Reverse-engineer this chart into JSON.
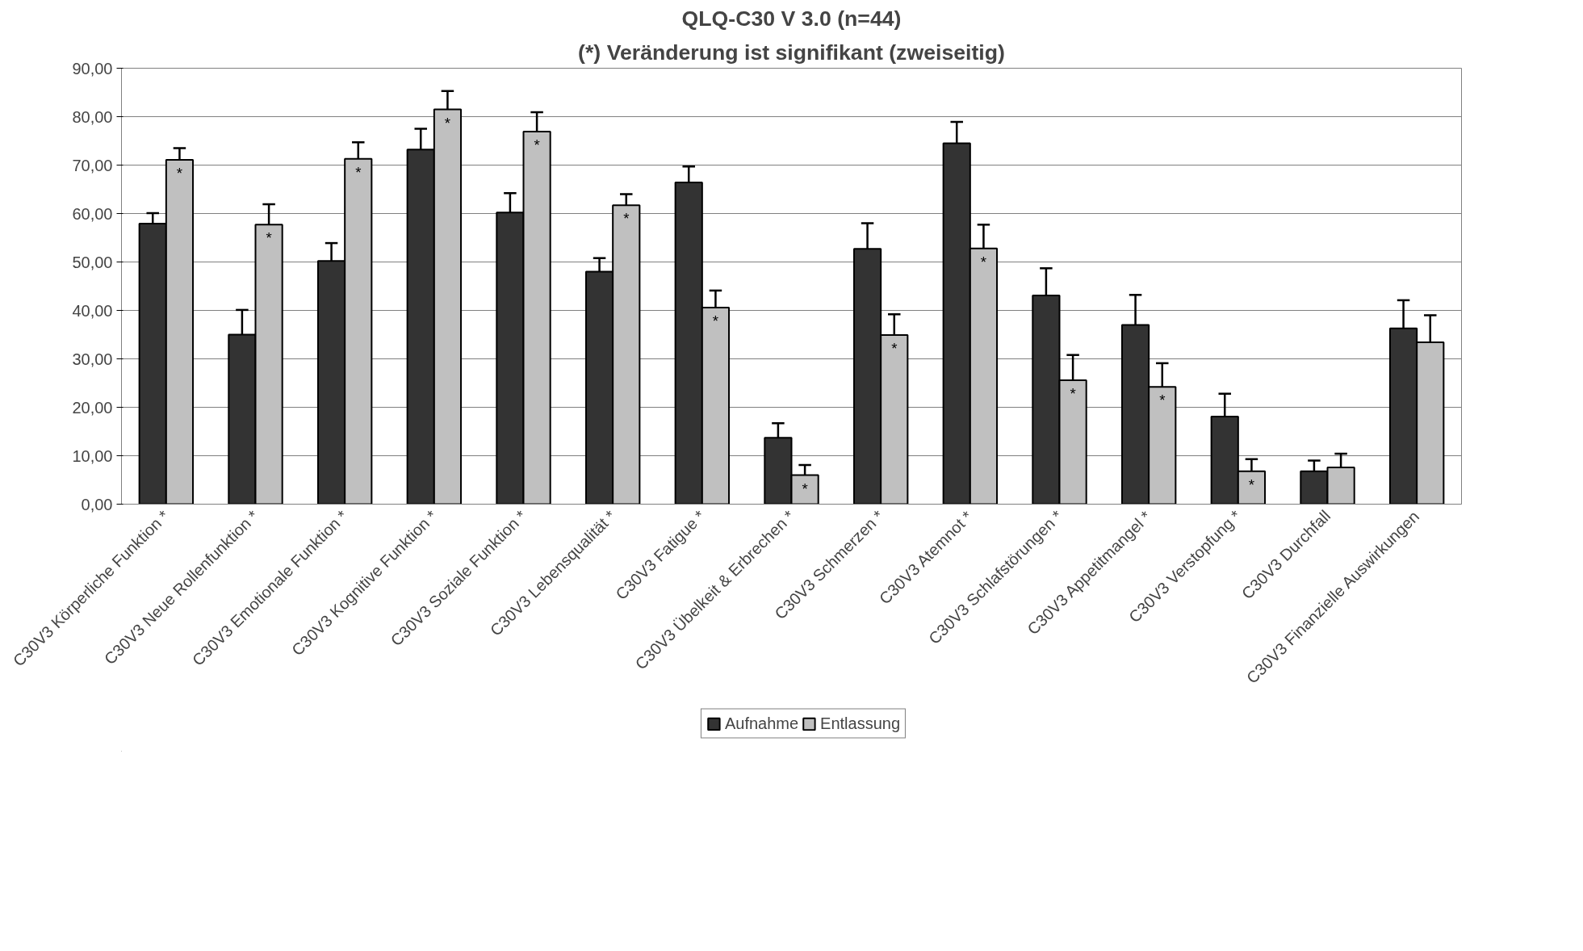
{
  "chart_data": {
    "type": "bar",
    "title": "QLQ-C30 V 3.0 (n=44)",
    "subtitle": "(*) Veränderung ist signifikant (zweiseitig)",
    "categories": [
      "C30V3 Körperliche Funktion *",
      "C30V3 Neue Rollenfunktion *",
      "C30V3 Emotionale Funktion *",
      "C30V3 Kognitive Funktion *",
      "C30V3 Soziale Funktion *",
      "C30V3 Lebensqualität *",
      "C30V3 Fatigue *",
      "C30V3 Übelkeit & Erbrechen *",
      "C30V3 Schmerzen *",
      "C30V3 Atemnot *",
      "C30V3 Schlafstörungen *",
      "C30V3 Appetitmangel *",
      "C30V3 Verstopfung *",
      "C30V3 Durchfall",
      "C30V3 Finanzielle Auswirkungen"
    ],
    "series": [
      {
        "name": "Aufnahme",
        "color": "#333333",
        "values": [
          57.9,
          35.0,
          50.2,
          73.2,
          60.2,
          48.0,
          66.4,
          13.7,
          52.7,
          74.5,
          43.1,
          37.0,
          18.1,
          6.8,
          36.3
        ],
        "errors": [
          [
            57.9,
            60.1
          ],
          [
            35.0,
            40.1
          ],
          [
            50.2,
            53.9
          ],
          [
            73.2,
            77.5
          ],
          [
            60.2,
            64.2
          ],
          [
            48.0,
            50.8
          ],
          [
            66.4,
            69.7
          ],
          [
            13.7,
            16.7
          ],
          [
            52.7,
            58.0
          ],
          [
            74.5,
            78.9
          ],
          [
            43.1,
            48.7
          ],
          [
            37.0,
            43.2
          ],
          [
            18.1,
            22.8
          ],
          [
            6.8,
            9.0
          ],
          [
            36.3,
            42.1
          ]
        ]
      },
      {
        "name": "Entlassung",
        "color": "#c0c0c0",
        "values": [
          71.1,
          57.7,
          71.3,
          81.5,
          76.9,
          61.7,
          40.6,
          6.0,
          34.9,
          52.8,
          25.6,
          24.2,
          6.8,
          7.6,
          33.4
        ],
        "errors": [
          [
            71.1,
            73.5
          ],
          [
            57.7,
            61.9
          ],
          [
            71.3,
            74.7
          ],
          [
            81.5,
            85.3
          ],
          [
            76.9,
            80.9
          ],
          [
            61.7,
            64.0
          ],
          [
            40.6,
            44.1
          ],
          [
            6.0,
            8.1
          ],
          [
            34.9,
            39.2
          ],
          [
            52.8,
            57.7
          ],
          [
            25.6,
            30.8
          ],
          [
            24.2,
            29.1
          ],
          [
            6.8,
            9.3
          ],
          [
            7.6,
            10.4
          ],
          [
            33.4,
            39.0
          ]
        ]
      }
    ],
    "ylim": [
      0,
      90
    ],
    "yticks": [
      {
        "value": 0,
        "label": "0,00"
      },
      {
        "value": 10,
        "label": "10,00"
      },
      {
        "value": 20,
        "label": "20,00"
      },
      {
        "value": 30,
        "label": "30,00"
      },
      {
        "value": 40,
        "label": "40,00"
      },
      {
        "value": 50,
        "label": "50,00"
      },
      {
        "value": 60,
        "label": "60,00"
      },
      {
        "value": 70,
        "label": "70,00"
      },
      {
        "value": 80,
        "label": "80,00"
      },
      {
        "value": 90,
        "label": "90,00"
      }
    ],
    "grid": "y",
    "legend": "bottom",
    "annotations": [
      {
        "text": "*",
        "x": "C30V3 Körperliche Funktion *",
        "y": 71.1
      },
      {
        "text": "*",
        "x": "C30V3 Neue Rollenfunktion *",
        "y": 57.7
      },
      {
        "text": "*",
        "x": "C30V3 Emotionale Funktion *",
        "y": 71.3
      },
      {
        "text": "*",
        "x": "C30V3 Kognitive Funktion *",
        "y": 81.5
      },
      {
        "text": "*",
        "x": "C30V3 Soziale Funktion *",
        "y": 76.9
      },
      {
        "text": "*",
        "x": "C30V3 Lebensqualität *",
        "y": 61.7
      },
      {
        "text": "*",
        "x": "C30V3 Fatigue *",
        "y": 40.6
      },
      {
        "text": "*",
        "x": "C30V3 Übelkeit & Erbrechen *",
        "y": 6.0
      },
      {
        "text": "*",
        "x": "C30V3 Schmerzen *",
        "y": 34.9
      },
      {
        "text": "*",
        "x": "C30V3 Atemnot *",
        "y": 52.8
      },
      {
        "text": "*",
        "x": "C30V3 Schlafstörungen *",
        "y": 25.6
      },
      {
        "text": "*",
        "x": "C30V3 Appetitmangel *",
        "y": 24.2
      },
      {
        "text": "*",
        "x": "C30V3 Verstopfung *",
        "y": 6.8
      }
    ]
  }
}
